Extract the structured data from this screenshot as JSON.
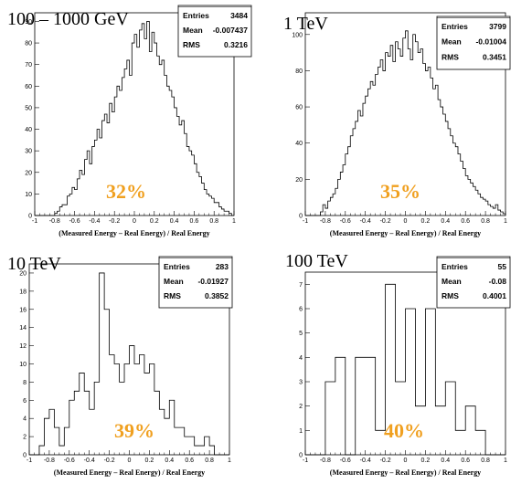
{
  "colors": {
    "annotation": "#F0A020",
    "histogram": "#000000",
    "frame": "#000000"
  },
  "chart_data": [
    {
      "type": "histogram",
      "title": "100 – 1000 GeV",
      "xlabel": "(Measured Energy – Real Energy) / Real Energy",
      "xlim": [
        -1,
        1
      ],
      "ylim": [
        0,
        94
      ],
      "xticks": [
        "-1",
        "-0.8",
        "-0.6",
        "-0.4",
        "-0.2",
        "0",
        "0.2",
        "0.4",
        "0.6",
        "0.8",
        "1"
      ],
      "yticks": [
        "0",
        "10",
        "20",
        "30",
        "40",
        "50",
        "60",
        "70",
        "80",
        "90"
      ],
      "stats": {
        "entries_label": "Entries",
        "entries": "3484",
        "mean_label": "Mean",
        "mean": "-0.007437",
        "rms_label": "RMS",
        "rms": "0.3216"
      },
      "annotation": "32%",
      "bin_start": -1.0,
      "bin_width": 0.025,
      "values": [
        0,
        0,
        0,
        0,
        0,
        0,
        0,
        0,
        1,
        2,
        4,
        5,
        5,
        9,
        10,
        13,
        12,
        17,
        21,
        19,
        26,
        30,
        24,
        32,
        35,
        40,
        36,
        44,
        47,
        43,
        52,
        48,
        55,
        60,
        58,
        64,
        68,
        72,
        65,
        80,
        84,
        78,
        86,
        89,
        82,
        90,
        76,
        85,
        80,
        74,
        70,
        72,
        65,
        60,
        58,
        55,
        50,
        46,
        42,
        44,
        38,
        32,
        30,
        28,
        24,
        20,
        18,
        15,
        12,
        10,
        9,
        8,
        6,
        6,
        4,
        3,
        2,
        2,
        1,
        0
      ]
    },
    {
      "type": "histogram",
      "title": "1 TeV",
      "xlabel": "(Measured Energy – Real Energy) / Real Energy",
      "xlim": [
        -1,
        1
      ],
      "ylim": [
        0,
        112
      ],
      "xticks": [
        "-1",
        "-0.8",
        "-0.6",
        "-0.4",
        "-0.2",
        "0",
        "0.2",
        "0.4",
        "0.6",
        "0.8",
        "1"
      ],
      "yticks": [
        "0",
        "20",
        "40",
        "60",
        "80",
        "100"
      ],
      "stats": {
        "entries_label": "Entries",
        "entries": "3799",
        "mean_label": "Mean",
        "mean": "-0.01004",
        "rms_label": "RMS",
        "rms": "0.3451"
      },
      "annotation": "35%",
      "bin_start": -1.0,
      "bin_width": 0.025,
      "values": [
        0,
        0,
        0,
        0,
        0,
        0,
        2,
        6,
        4,
        8,
        10,
        12,
        15,
        20,
        24,
        28,
        34,
        38,
        44,
        48,
        52,
        58,
        55,
        62,
        66,
        70,
        74,
        72,
        78,
        82,
        86,
        80,
        90,
        88,
        94,
        85,
        96,
        92,
        88,
        98,
        102,
        92,
        86,
        100,
        96,
        90,
        92,
        84,
        80,
        82,
        76,
        70,
        72,
        64,
        60,
        56,
        52,
        48,
        44,
        40,
        38,
        34,
        30,
        26,
        22,
        20,
        18,
        16,
        14,
        12,
        10,
        9,
        8,
        6,
        5,
        4,
        6,
        3,
        2,
        1
      ]
    },
    {
      "type": "histogram",
      "title": "10 TeV",
      "xlabel": "(Measured Energy – Real Energy) / Real Energy",
      "xlim": [
        -1,
        1
      ],
      "ylim": [
        0,
        21
      ],
      "xticks": [
        "-1",
        "-0.8",
        "-0.6",
        "-0.4",
        "-0.2",
        "0",
        "0.2",
        "0.4",
        "0.6",
        "0.8",
        "1"
      ],
      "yticks": [
        "0",
        "2",
        "4",
        "6",
        "8",
        "10",
        "12",
        "14",
        "16",
        "18",
        "20"
      ],
      "stats": {
        "entries_label": "Entries",
        "entries": "283",
        "mean_label": "Mean",
        "mean": "-0.01927",
        "rms_label": "RMS",
        "rms": "0.3852"
      },
      "annotation": "39%",
      "bin_start": -1.0,
      "bin_width": 0.05,
      "values": [
        0,
        0,
        1,
        4,
        5,
        3,
        1,
        3,
        6,
        7,
        9,
        7,
        5,
        8,
        20,
        16,
        11,
        10,
        8,
        10,
        12,
        10,
        11,
        9,
        10,
        7,
        5,
        4,
        6,
        3,
        3,
        2,
        2,
        1,
        1,
        2,
        1,
        0,
        0,
        0
      ]
    },
    {
      "type": "histogram",
      "title": "100 TeV",
      "xlabel": "(Measured Energy – Real Energy) / Real Energy",
      "xlim": [
        -1,
        1
      ],
      "ylim": [
        0,
        7.5
      ],
      "xticks": [
        "-1",
        "-0.8",
        "-0.6",
        "-0.4",
        "-0.2",
        "0",
        "0.2",
        "0.4",
        "0.6",
        "0.8",
        "1"
      ],
      "yticks": [
        "0",
        "1",
        "2",
        "3",
        "4",
        "5",
        "6",
        "7"
      ],
      "stats": {
        "entries_label": "Entries",
        "entries": "55",
        "mean_label": "Mean",
        "mean": "-0.08",
        "rms_label": "RMS",
        "rms": "0.4001"
      },
      "annotation": "40%",
      "bin_start": -1.0,
      "bin_width": 0.1,
      "values": [
        0,
        0,
        3,
        4,
        0,
        4,
        4,
        1,
        7,
        3,
        6,
        2,
        6,
        2,
        3,
        1,
        2,
        1,
        0,
        0
      ]
    }
  ]
}
